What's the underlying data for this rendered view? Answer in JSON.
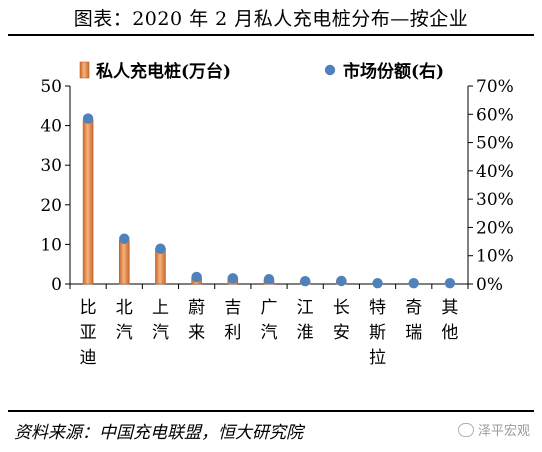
{
  "header": {
    "title": "图表：2020 年 2 月私人充电桩分布—按企业"
  },
  "footer": {
    "source": "资料来源：中国充电联盟，恒大研究院",
    "watermark": "泽平宏观"
  },
  "chart_data": {
    "type": "bar+scatter",
    "categories": [
      "比亚迪",
      "北汽",
      "上汽",
      "蔚来",
      "吉利",
      "广汽",
      "江淮",
      "长安",
      "特斯拉",
      "奇瑞",
      "其他"
    ],
    "series": [
      {
        "name": "私人充电桩(万台)",
        "type": "bar",
        "axis": "left",
        "values": [
          41.5,
          11.0,
          9.0,
          1.6,
          1.3,
          1.0,
          0.7,
          0.8,
          0.2,
          0.2,
          0.2
        ]
      },
      {
        "name": "市场份额(右)",
        "type": "scatter",
        "axis": "right",
        "values": [
          0.585,
          0.16,
          0.125,
          0.025,
          0.02,
          0.017,
          0.01,
          0.011,
          0.003,
          0.003,
          0.003
        ]
      }
    ],
    "left_axis": {
      "min": 0,
      "max": 50,
      "ticks": [
        0,
        10,
        20,
        30,
        40,
        50
      ]
    },
    "right_axis": {
      "min": 0,
      "max": 0.7,
      "ticks": [
        "0%",
        "10%",
        "20%",
        "30%",
        "40%",
        "50%",
        "60%",
        "70%"
      ]
    },
    "legend_position": "top",
    "colors": {
      "bar": "#f0a060",
      "bar_edge": "#c0622a",
      "dot": "#4f81bd"
    }
  }
}
